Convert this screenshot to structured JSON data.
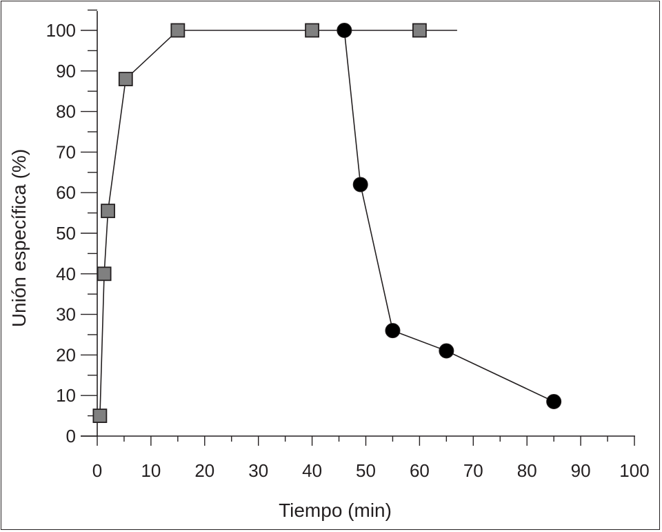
{
  "chart_data": {
    "type": "line",
    "xlabel": "Tiempo (min)",
    "ylabel": "Unión específica (%)",
    "xlim": [
      0,
      100
    ],
    "ylim": [
      0,
      100
    ],
    "x_ticks": [
      0,
      10,
      20,
      30,
      40,
      50,
      60,
      70,
      80,
      90,
      100
    ],
    "y_ticks": [
      0,
      10,
      20,
      30,
      40,
      50,
      60,
      70,
      80,
      90,
      100
    ],
    "x_minor_step": 5,
    "y_minor_step": 5,
    "grid": false,
    "legend": "none",
    "series": [
      {
        "marker": "square",
        "color": "#808080",
        "points": [
          {
            "x": 0.5,
            "y": 5
          },
          {
            "x": 1.3,
            "y": 40
          },
          {
            "x": 2.0,
            "y": 55.5
          },
          {
            "x": 5.3,
            "y": 88
          },
          {
            "x": 15,
            "y": 100
          },
          {
            "x": 40,
            "y": 100
          },
          {
            "x": 60,
            "y": 100
          }
        ],
        "line_end_x": 67
      },
      {
        "marker": "circle",
        "color": "#000000",
        "points": [
          {
            "x": 46,
            "y": 100
          },
          {
            "x": 49,
            "y": 62
          },
          {
            "x": 55,
            "y": 26
          },
          {
            "x": 65,
            "y": 21
          },
          {
            "x": 85,
            "y": 8.5
          }
        ]
      }
    ]
  }
}
